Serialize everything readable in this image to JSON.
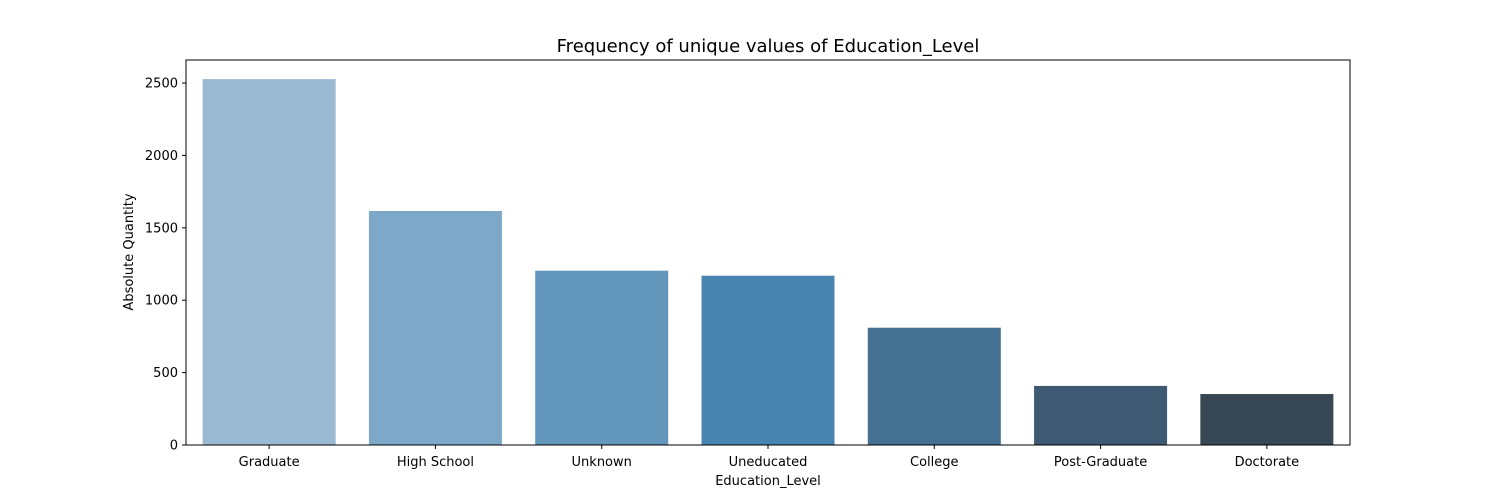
{
  "chart_data": {
    "type": "bar",
    "title": "Frequency of unique values of Education_Level",
    "xlabel": "Education_Level",
    "ylabel": "Absolute Quantity",
    "categories": [
      "Graduate",
      "High School",
      "Unknown",
      "Uneducated",
      "College",
      "Post-Graduate",
      "Doctorate"
    ],
    "values": [
      2527,
      1616,
      1204,
      1169,
      810,
      408,
      352
    ],
    "ylim": [
      0,
      2659
    ],
    "yticks": [
      0,
      500,
      1000,
      1500,
      2000,
      2500
    ],
    "colors": [
      "#9abad3",
      "#7ea8c8",
      "#6497bc",
      "#4884b0",
      "#447091",
      "#3e5a72",
      "#384754"
    ],
    "grid": false,
    "legend": "none"
  }
}
